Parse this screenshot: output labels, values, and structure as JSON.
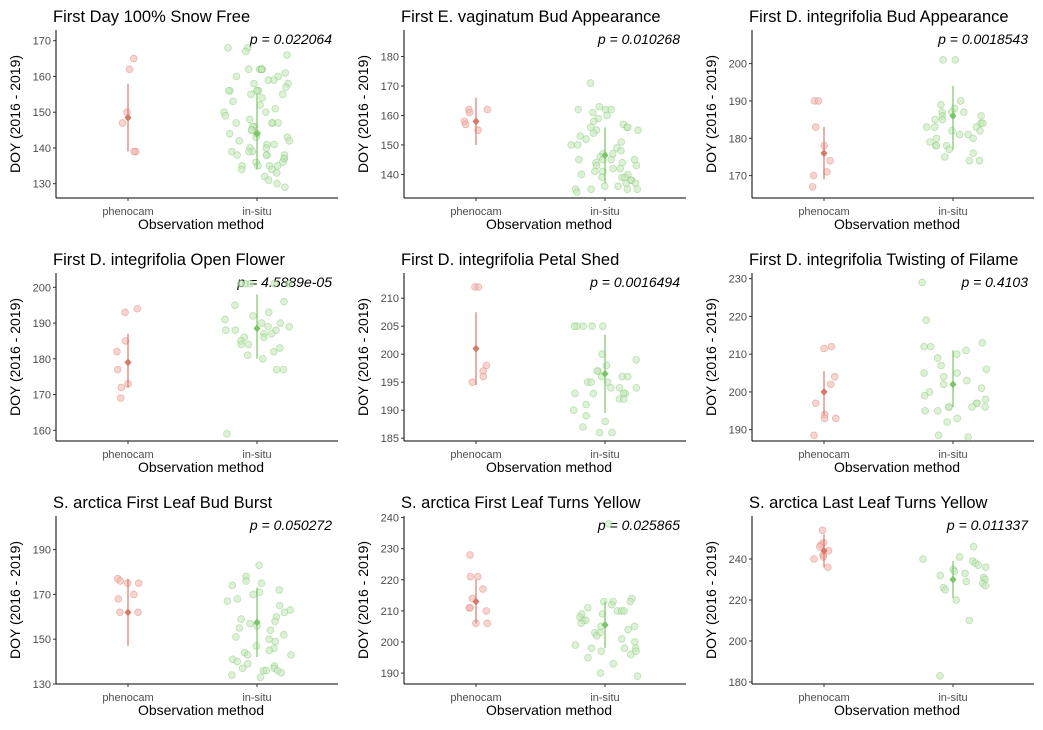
{
  "figure": {
    "common": {
      "xlabel": "Observation method",
      "ylabel": "DOY (2016 - 2019)",
      "categories": [
        "phenocam",
        "in-situ"
      ]
    },
    "colors": {
      "phenocam": "#d87a6a",
      "in_situ": "#7cc46a",
      "phenocam_point_fill": "#f2b8b0",
      "in_situ_point_fill": "#c6e8bd"
    }
  },
  "chart_data": [
    {
      "type": "scatter",
      "title": "First Day 100% Snow Free",
      "p_label": "p = 0.022064",
      "ylim": [
        126,
        173
      ],
      "yticks": [
        130,
        140,
        150,
        160,
        170
      ],
      "series": [
        {
          "name": "phenocam",
          "values": [
            165,
            162,
            150,
            147,
            139,
            139
          ],
          "mean": 148.5,
          "range": [
            139,
            158
          ]
        },
        {
          "name": "in-situ",
          "values": [
            168,
            168,
            167,
            166,
            162,
            162,
            162,
            162,
            162,
            162,
            161,
            160,
            160,
            159,
            159,
            158,
            158,
            157,
            156,
            156,
            156,
            156,
            156,
            155,
            155,
            154,
            153,
            152,
            151,
            150,
            150,
            149,
            148,
            147,
            147,
            147,
            147,
            146,
            146,
            145,
            145,
            144,
            144,
            143,
            143,
            142,
            142,
            141,
            141,
            140,
            140,
            139,
            139,
            139,
            138,
            138,
            138,
            138,
            137,
            137,
            136,
            136,
            135,
            135,
            135,
            135,
            134,
            134,
            133,
            132,
            131,
            130,
            129
          ],
          "mean": 144,
          "range": [
            134,
            155
          ]
        }
      ]
    },
    {
      "type": "scatter",
      "title": "First E. vaginatum Bud Appearance",
      "p_label": "p = 0.010268",
      "ylim": [
        132,
        189
      ],
      "yticks": [
        140,
        150,
        160,
        170,
        180
      ],
      "series": [
        {
          "name": "phenocam",
          "values": [
            162,
            162,
            161,
            158,
            157,
            155
          ],
          "mean": 158,
          "range": [
            150,
            166
          ]
        },
        {
          "name": "in-situ",
          "values": [
            171,
            163,
            162,
            162,
            162,
            161,
            160,
            159,
            158,
            157,
            156,
            156,
            156,
            155,
            155,
            154,
            153,
            152,
            151,
            150,
            150,
            149,
            148,
            147,
            147,
            146,
            145,
            145,
            145,
            145,
            144,
            144,
            143,
            143,
            142,
            142,
            141,
            141,
            140,
            140,
            139,
            139,
            139,
            138,
            138,
            137,
            137,
            136,
            136,
            135,
            135,
            135,
            135,
            134
          ],
          "mean": 146.5,
          "range": [
            137,
            156
          ]
        }
      ]
    },
    {
      "type": "scatter",
      "title": "First D. integrifolia Bud Appearance",
      "p_label": "p = 0.0018543",
      "ylim": [
        164,
        209
      ],
      "yticks": [
        170,
        180,
        190,
        200
      ],
      "series": [
        {
          "name": "phenocam",
          "values": [
            190,
            190,
            183,
            178,
            174,
            171,
            170,
            167
          ],
          "mean": 176,
          "range": [
            169,
            183
          ]
        },
        {
          "name": "in-situ",
          "values": [
            201,
            201,
            190,
            189,
            188,
            187,
            187,
            187,
            186,
            186,
            185,
            185,
            184,
            184,
            183,
            183,
            183,
            182,
            182,
            181,
            181,
            180,
            180,
            179,
            178,
            178,
            178,
            177,
            176,
            175,
            174,
            174
          ],
          "mean": 186,
          "range": [
            177,
            194
          ]
        }
      ]
    },
    {
      "type": "scatter",
      "title": "First D. integrifolia Open Flower",
      "p_label": "p = 4.5889e-05",
      "ylim": [
        157,
        204
      ],
      "yticks": [
        160,
        170,
        180,
        190,
        200
      ],
      "series": [
        {
          "name": "phenocam",
          "values": [
            194,
            193,
            185,
            182,
            177,
            173,
            172,
            169
          ],
          "mean": 179,
          "range": [
            172,
            187
          ]
        },
        {
          "name": "in-situ",
          "values": [
            201,
            201,
            201,
            201,
            201,
            196,
            195,
            193,
            192,
            191,
            190,
            190,
            189,
            189,
            188,
            188,
            188,
            187,
            187,
            186,
            186,
            185,
            184,
            184,
            183,
            182,
            181,
            180,
            177,
            177,
            159
          ],
          "mean": 188.5,
          "range": [
            180,
            198
          ]
        }
      ]
    },
    {
      "type": "scatter",
      "title": "First D. integrifolia Petal Shed",
      "p_label": "p = 0.0016494",
      "ylim": [
        184.5,
        214.5
      ],
      "yticks": [
        185,
        190,
        195,
        200,
        205,
        210
      ],
      "series": [
        {
          "name": "phenocam",
          "values": [
            212,
            212,
            198,
            197,
            196,
            195
          ],
          "mean": 201,
          "range": [
            194.5,
            207.5
          ]
        },
        {
          "name": "in-situ",
          "values": [
            205,
            205,
            205,
            205,
            205,
            200,
            199,
            198,
            197,
            197,
            196,
            196,
            196,
            195,
            195,
            195,
            194,
            194,
            194,
            193,
            193,
            193,
            193,
            192,
            192,
            191,
            190,
            189,
            188,
            187,
            186,
            186
          ],
          "mean": 196.5,
          "range": [
            189.5,
            203.5
          ]
        }
      ]
    },
    {
      "type": "scatter",
      "title": "First D. integrifolia Twisting of Filame",
      "p_label": "p = 0.4103",
      "ylim": [
        187,
        231.5
      ],
      "yticks": [
        190,
        200,
        210,
        220,
        230
      ],
      "series": [
        {
          "name": "phenocam",
          "values": [
            212,
            211.5,
            204,
            202,
            197,
            194,
            193,
            193,
            188.5
          ],
          "mean": 200,
          "range": [
            194,
            205.5
          ]
        },
        {
          "name": "in-situ",
          "values": [
            229,
            219,
            213,
            212,
            212,
            211,
            210,
            209,
            207,
            206,
            205,
            205,
            204,
            203,
            202,
            201,
            200,
            199,
            198,
            197,
            197,
            196,
            196,
            196,
            196,
            195,
            195,
            193,
            192,
            188.5,
            188
          ],
          "mean": 202,
          "range": [
            196,
            211
          ]
        }
      ]
    },
    {
      "type": "scatter",
      "title": "S. arctica First Leaf Bud Burst",
      "p_label": "p = 0.050272",
      "ylim": [
        130,
        205
      ],
      "yticks": [
        130,
        150,
        170,
        190
      ],
      "series": [
        {
          "name": "phenocam",
          "values": [
            177,
            176,
            175,
            175,
            170,
            168,
            162,
            162
          ],
          "mean": 162,
          "range": [
            147,
            177
          ]
        },
        {
          "name": "in-situ",
          "values": [
            183,
            178,
            176,
            175,
            174,
            172,
            171,
            170,
            168,
            167,
            165,
            163,
            162,
            160,
            159,
            158,
            157,
            156,
            155,
            154,
            152,
            151,
            150,
            149,
            147,
            146,
            145,
            144,
            143,
            143,
            141,
            140,
            139,
            138,
            137,
            137,
            136,
            136,
            136,
            135,
            134,
            133
          ],
          "mean": 157.5,
          "range": [
            142,
            173
          ]
        }
      ]
    },
    {
      "type": "scatter",
      "title": "S. arctica First Leaf Turns Yellow",
      "p_label": "p = 0.025865",
      "ylim": [
        186.5,
        240.5
      ],
      "yticks": [
        190,
        200,
        210,
        220,
        230,
        240
      ],
      "series": [
        {
          "name": "phenocam",
          "values": [
            228,
            221,
            221,
            217,
            214,
            211,
            211,
            210,
            206,
            206
          ],
          "mean": 213,
          "range": [
            206,
            220
          ]
        },
        {
          "name": "in-situ",
          "values": [
            238,
            214,
            213,
            213,
            213,
            212,
            211,
            210,
            210,
            210,
            209,
            209,
            208,
            207,
            207,
            206,
            205,
            205,
            204,
            203,
            203,
            202,
            201,
            200,
            199,
            198,
            198,
            198,
            197,
            197,
            196,
            195,
            193,
            190,
            189
          ],
          "mean": 205.5,
          "range": [
            198,
            213
          ]
        }
      ]
    },
    {
      "type": "scatter",
      "title": "S. arctica Last Leaf Turns Yellow",
      "p_label": "p = 0.011337",
      "ylim": [
        179,
        261
      ],
      "yticks": [
        180,
        200,
        220,
        240
      ],
      "series": [
        {
          "name": "phenocam",
          "values": [
            254,
            248,
            247,
            246,
            244,
            242,
            241,
            240,
            236
          ],
          "mean": 244,
          "range": [
            236,
            252
          ]
        },
        {
          "name": "in-situ",
          "values": [
            246,
            241,
            240,
            239,
            238,
            237,
            236,
            235,
            234,
            233,
            232,
            231,
            230,
            229,
            228,
            227,
            226,
            225,
            220,
            210,
            183
          ],
          "mean": 230,
          "range": [
            221,
            239
          ]
        }
      ]
    }
  ]
}
